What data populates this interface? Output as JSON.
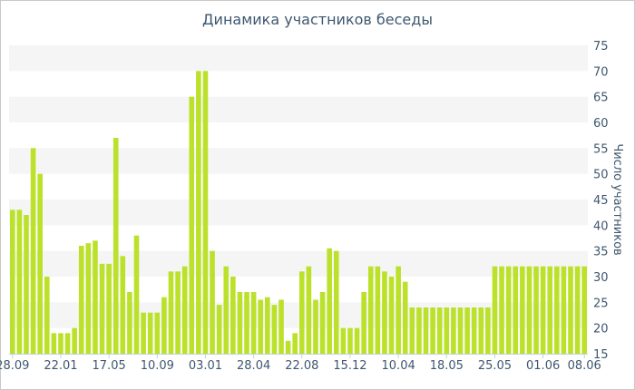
{
  "chart_data": {
    "type": "bar",
    "title": "Динамика участников беседы",
    "xlabel": "",
    "ylabel": "Число участников",
    "ylim": [
      15,
      75
    ],
    "yticks": [
      15,
      20,
      25,
      30,
      35,
      40,
      45,
      50,
      55,
      60,
      65,
      70,
      75
    ],
    "x_tick_labels": [
      {
        "label": "28.09",
        "index": 0
      },
      {
        "label": "22.01",
        "index": 7
      },
      {
        "label": "17.05",
        "index": 14
      },
      {
        "label": "10.09",
        "index": 21
      },
      {
        "label": "03.01",
        "index": 28
      },
      {
        "label": "28.04",
        "index": 35
      },
      {
        "label": "22.08",
        "index": 42
      },
      {
        "label": "15.12",
        "index": 49
      },
      {
        "label": "10.04",
        "index": 56
      },
      {
        "label": "18.05",
        "index": 63
      },
      {
        "label": "25.05",
        "index": 70
      },
      {
        "label": "01.06",
        "index": 77
      },
      {
        "label": "08.06",
        "index": 83
      }
    ],
    "values": [
      43,
      43,
      42,
      55,
      50,
      30,
      19,
      19,
      19,
      20,
      36,
      36.5,
      37,
      32.5,
      32.5,
      57,
      34,
      27,
      38,
      23,
      23,
      23,
      26,
      31,
      31,
      32,
      65,
      70,
      70,
      35,
      24.5,
      32,
      30,
      27,
      27,
      27,
      25.5,
      26,
      24.5,
      25.5,
      17.5,
      19,
      31,
      32,
      25.5,
      27,
      35.5,
      35,
      20,
      20,
      20,
      27,
      32,
      32,
      31,
      30,
      32,
      29,
      24,
      24,
      24,
      24,
      24,
      24,
      24,
      24,
      24,
      24,
      24,
      24,
      32,
      32,
      32,
      32,
      32,
      32,
      32,
      32,
      32,
      32,
      32,
      32,
      32,
      32
    ],
    "bar_color": "#bbe12a",
    "band_color": "#f5f5f5",
    "text_color": "#3e576f",
    "grid": "alternating horizontal bands"
  }
}
